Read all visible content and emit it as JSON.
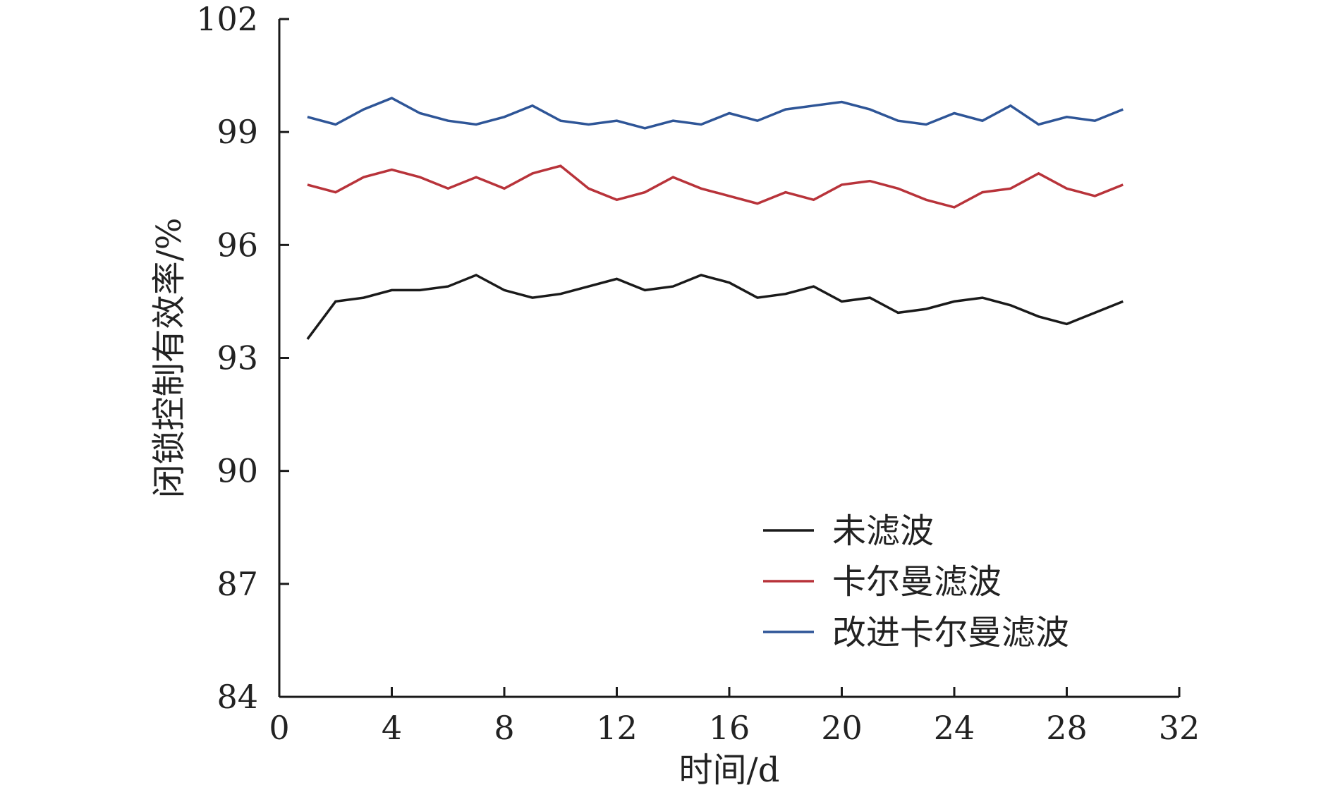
{
  "chart_data": {
    "type": "line",
    "xlabel": "时间/d",
    "ylabel": "闭锁控制有效率/%",
    "xlim": [
      0,
      32
    ],
    "ylim": [
      84,
      102
    ],
    "xticks": [
      0,
      4,
      8,
      12,
      16,
      20,
      24,
      28,
      32
    ],
    "yticks": [
      84,
      87,
      90,
      93,
      96,
      99,
      102
    ],
    "xtick_labels": [
      "0",
      "4",
      "8",
      "12",
      "16",
      "20",
      "24",
      "28",
      "32"
    ],
    "ytick_labels": [
      "84",
      "87",
      "90",
      "93",
      "96",
      "99",
      "102"
    ],
    "grid": false,
    "legend_position": "bottom-right",
    "x": [
      1,
      2,
      3,
      4,
      5,
      6,
      7,
      8,
      9,
      10,
      11,
      12,
      13,
      14,
      15,
      16,
      17,
      18,
      19,
      20,
      21,
      22,
      23,
      24,
      25,
      26,
      27,
      28,
      29,
      30
    ],
    "series": [
      {
        "name": "未滤波",
        "color": "#1a1a1a",
        "values": [
          93.5,
          94.5,
          94.6,
          94.8,
          94.8,
          94.9,
          95.2,
          94.8,
          94.6,
          94.7,
          94.9,
          95.1,
          94.8,
          94.9,
          95.2,
          95.0,
          94.6,
          94.7,
          94.9,
          94.5,
          94.6,
          94.2,
          94.3,
          94.5,
          94.6,
          94.4,
          94.1,
          93.9,
          94.2,
          94.5
        ]
      },
      {
        "name": "卡尔曼滤波",
        "color": "#b8333a",
        "values": [
          97.6,
          97.4,
          97.8,
          98.0,
          97.8,
          97.5,
          97.8,
          97.5,
          97.9,
          98.1,
          97.5,
          97.2,
          97.4,
          97.8,
          97.5,
          97.3,
          97.1,
          97.4,
          97.2,
          97.6,
          97.7,
          97.5,
          97.2,
          97.0,
          97.4,
          97.5,
          97.9,
          97.5,
          97.3,
          97.6
        ]
      },
      {
        "name": "改进卡尔曼滤波",
        "color": "#2e5597",
        "values": [
          99.4,
          99.2,
          99.6,
          99.9,
          99.5,
          99.3,
          99.2,
          99.4,
          99.7,
          99.3,
          99.2,
          99.3,
          99.1,
          99.3,
          99.2,
          99.5,
          99.3,
          99.6,
          99.7,
          99.8,
          99.6,
          99.3,
          99.2,
          99.5,
          99.3,
          99.7,
          99.2,
          99.4,
          99.3,
          99.6
        ]
      }
    ]
  }
}
